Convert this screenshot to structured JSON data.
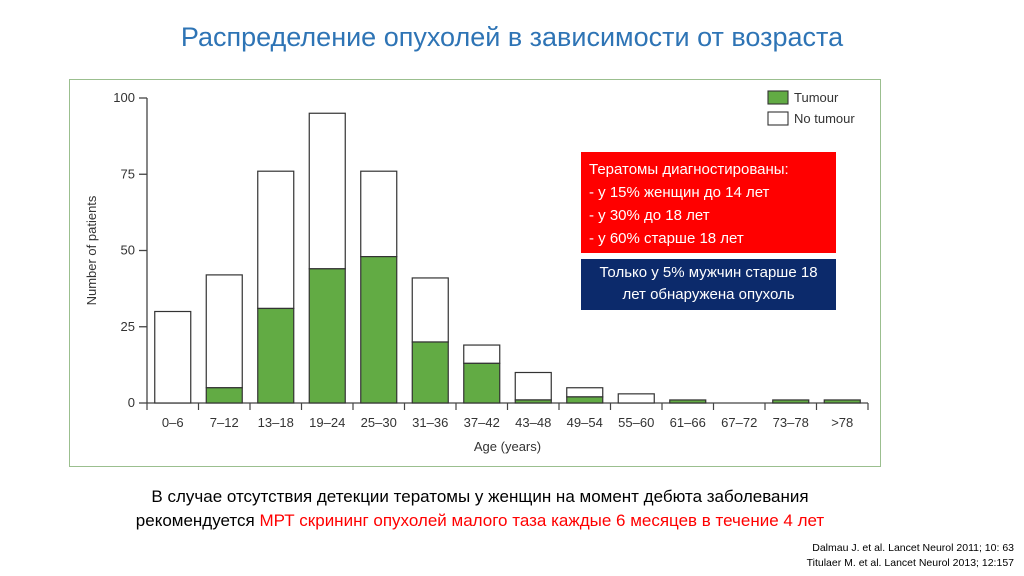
{
  "title": "Распределение опухолей в зависимости от возраста",
  "colors": {
    "tumour": "#62ab44",
    "no_tumour": "#ffffff",
    "red_box": "#ff0000",
    "blue_box": "#0c2a6b",
    "title": "#2e74b5"
  },
  "chart_data": {
    "type": "bar",
    "stacked": true,
    "categories": [
      "0–6",
      "7–12",
      "13–18",
      "19–24",
      "25–30",
      "31–36",
      "37–42",
      "43–48",
      "49–54",
      "55–60",
      "61–66",
      "67–72",
      "73–78",
      ">78"
    ],
    "series": [
      {
        "name": "Tumour",
        "values": [
          0,
          5,
          31,
          44,
          48,
          20,
          13,
          1,
          2,
          0,
          1,
          0,
          1,
          1
        ]
      },
      {
        "name": "No tumour",
        "values": [
          30,
          37,
          45,
          51,
          28,
          21,
          6,
          9,
          3,
          3,
          0,
          0,
          0,
          0
        ]
      }
    ],
    "xlabel": "Age (years)",
    "ylabel": "Number of patients",
    "ylim": [
      0,
      100
    ],
    "yticks": [
      "0",
      "25",
      "50",
      "75",
      "100"
    ],
    "legend_position": "top-right"
  },
  "notes": {
    "red": {
      "line1": "Тератомы диагностированы:",
      "line2": "- у 15% женщин до 14 лет",
      "line3": "- у 30% до 18 лет",
      "line4": "- у 60% старше 18 лет"
    },
    "blue": "Только у 5% мужчин старше 18 лет обнаружена опухоль"
  },
  "bottom": {
    "line1": "В случае отсутствия детекции тератомы у женщин на момент дебюта заболевания",
    "line2_prefix": "рекомендуется ",
    "line2_highlight": "МРТ скрининг опухолей малого таза каждые 6 месяцев в течение 4 лет"
  },
  "references": [
    "Dalmau J. et al. Lancet Neurol 2011; 10: 63",
    "Titulaer M. et al. Lancet Neurol 2013; 12:157"
  ]
}
